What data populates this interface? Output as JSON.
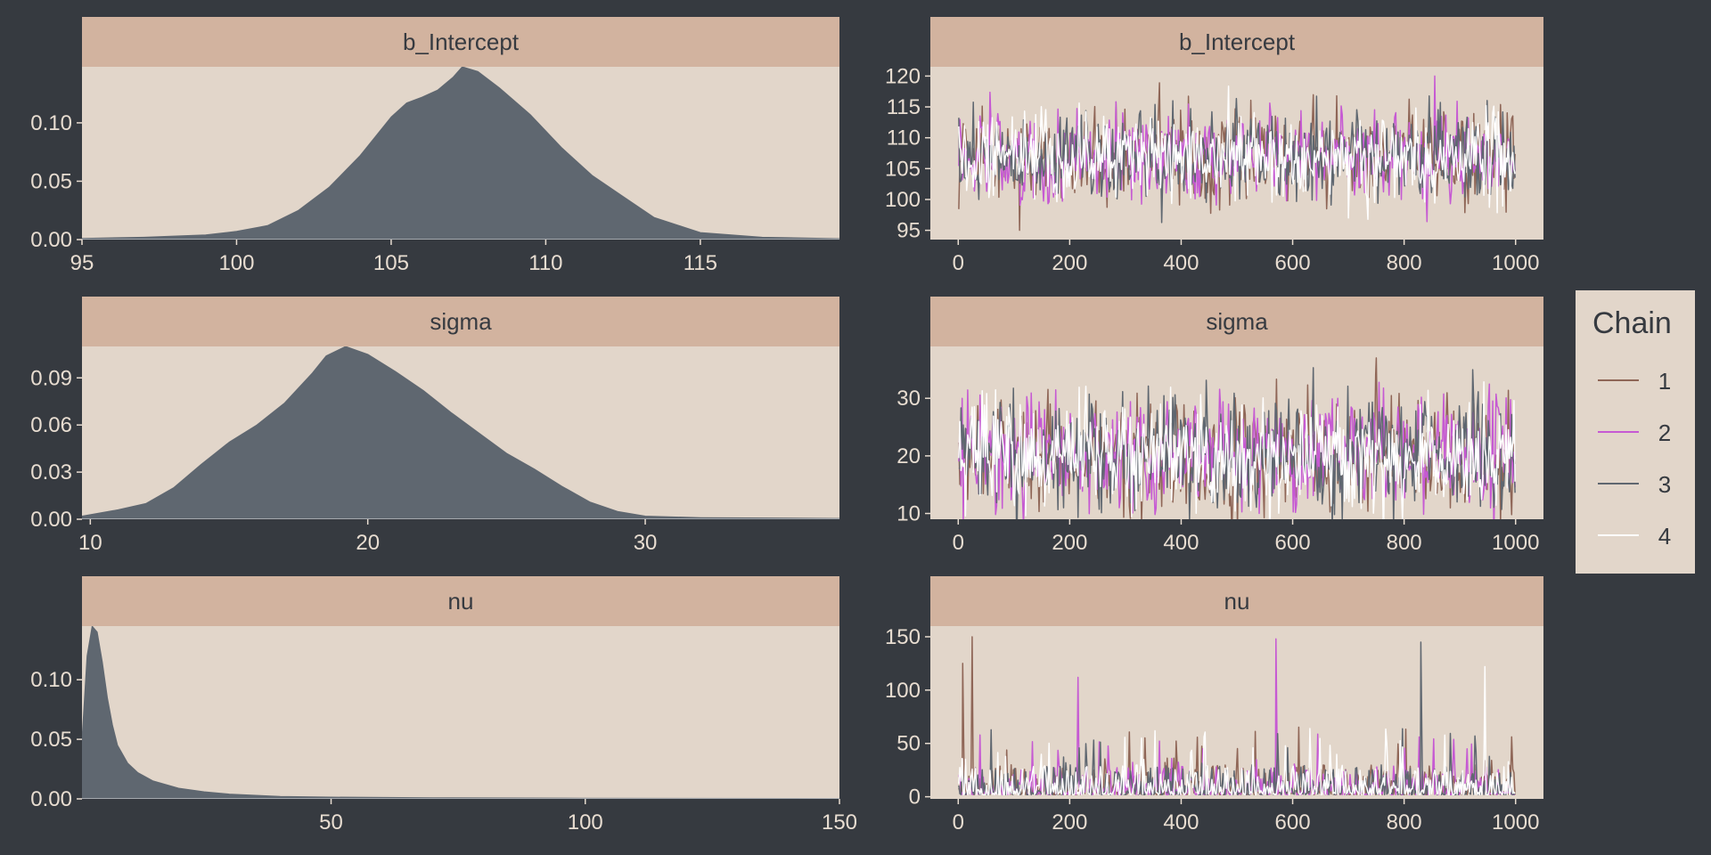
{
  "colors": {
    "background": "#363a40",
    "panel": "#e2d6ca",
    "strip": "#d2b39f",
    "density_fill": "#5f6770",
    "tick_text": "#e8ddd1",
    "strip_text": "#363a40"
  },
  "legend": {
    "title": "Chain",
    "items": [
      {
        "label": "1",
        "color": "#8f6657"
      },
      {
        "label": "2",
        "color": "#c65ad3"
      },
      {
        "label": "3",
        "color": "#5f6770"
      },
      {
        "label": "4",
        "color": "#ffffff"
      }
    ]
  },
  "chart_data": [
    {
      "type": "area",
      "title": "b_Intercept",
      "xlim": [
        95,
        119.5
      ],
      "ylim": [
        0,
        0.148
      ],
      "xticks": [
        95,
        100,
        105,
        110,
        115
      ],
      "yticks": [
        0,
        0.05,
        0.1
      ],
      "ytick_labels": [
        "0.00",
        "0.05",
        "0.10"
      ],
      "x": [
        95,
        97,
        99,
        100,
        101,
        102,
        103,
        104,
        105,
        105.5,
        106,
        106.5,
        107,
        107.3,
        107.8,
        108.5,
        109.5,
        110.5,
        111.5,
        112.5,
        113.5,
        115,
        117,
        119.5
      ],
      "y": [
        0.001,
        0.002,
        0.004,
        0.007,
        0.012,
        0.025,
        0.045,
        0.072,
        0.105,
        0.117,
        0.122,
        0.128,
        0.139,
        0.148,
        0.144,
        0.13,
        0.107,
        0.079,
        0.055,
        0.037,
        0.019,
        0.006,
        0.002,
        0.0008
      ]
    },
    {
      "type": "line",
      "title": "b_Intercept",
      "xlim": [
        -50,
        1050
      ],
      "ylim": [
        93.5,
        121.5
      ],
      "xticks": [
        0,
        200,
        400,
        600,
        800,
        1000
      ],
      "yticks": [
        95,
        100,
        105,
        110,
        115,
        120
      ],
      "iterations": 1000,
      "center": 107,
      "spread": 3.5,
      "extremes": [
        {
          "x": 110,
          "y": 95
        },
        {
          "x": 855,
          "y": 120
        },
        {
          "x": 385,
          "y": 116
        },
        {
          "x": 700,
          "y": 97
        }
      ],
      "series": [
        {
          "name": "1"
        },
        {
          "name": "2"
        },
        {
          "name": "3"
        },
        {
          "name": "4"
        }
      ]
    },
    {
      "type": "area",
      "title": "sigma",
      "xlim": [
        9.7,
        37
      ],
      "ylim": [
        0,
        0.11
      ],
      "xticks": [
        10,
        20,
        30
      ],
      "yticks": [
        0,
        0.03,
        0.06,
        0.09
      ],
      "ytick_labels": [
        "0.00",
        "0.03",
        "0.06",
        "0.09"
      ],
      "x": [
        9.7,
        11,
        12,
        13,
        14,
        15,
        16,
        17,
        18,
        18.5,
        19.2,
        20,
        21,
        22,
        23,
        24,
        25,
        26,
        27,
        28,
        29,
        30,
        32,
        37
      ],
      "y": [
        0.002,
        0.006,
        0.01,
        0.02,
        0.035,
        0.049,
        0.06,
        0.074,
        0.093,
        0.104,
        0.11,
        0.105,
        0.094,
        0.082,
        0.068,
        0.055,
        0.042,
        0.032,
        0.021,
        0.011,
        0.005,
        0.002,
        0.001,
        0.0005
      ]
    },
    {
      "type": "line",
      "title": "sigma",
      "xlim": [
        -50,
        1050
      ],
      "ylim": [
        9,
        39
      ],
      "xticks": [
        0,
        200,
        400,
        600,
        800,
        1000
      ],
      "yticks": [
        10,
        20,
        30
      ],
      "iterations": 1000,
      "center": 20,
      "spread": 4.8,
      "extremes": [
        {
          "x": 750,
          "y": 37
        },
        {
          "x": 540,
          "y": 10
        },
        {
          "x": 895,
          "y": 12
        }
      ],
      "series": [
        {
          "name": "1"
        },
        {
          "name": "2"
        },
        {
          "name": "3"
        },
        {
          "name": "4"
        }
      ]
    },
    {
      "type": "area",
      "title": "nu",
      "xlim": [
        1,
        150
      ],
      "ylim": [
        0,
        0.145
      ],
      "xticks": [
        50,
        100,
        150
      ],
      "yticks": [
        0,
        0.05,
        0.1
      ],
      "ytick_labels": [
        "0.00",
        "0.05",
        "0.10"
      ],
      "x": [
        1,
        2,
        3,
        4,
        5,
        6,
        7,
        8,
        10,
        12,
        15,
        20,
        25,
        30,
        40,
        50,
        70,
        100,
        150
      ],
      "y": [
        0.05,
        0.12,
        0.145,
        0.14,
        0.115,
        0.085,
        0.062,
        0.045,
        0.03,
        0.022,
        0.015,
        0.009,
        0.006,
        0.004,
        0.002,
        0.0015,
        0.001,
        0.0006,
        0.0003
      ]
    },
    {
      "type": "line",
      "title": "nu",
      "xlim": [
        -50,
        1050
      ],
      "ylim": [
        -2,
        160
      ],
      "xticks": [
        0,
        200,
        400,
        600,
        800,
        1000
      ],
      "yticks": [
        0,
        50,
        100,
        150
      ],
      "iterations": 1000,
      "center": 8,
      "spread": 0,
      "extremes": [
        {
          "x": 25,
          "y": 150
        },
        {
          "x": 570,
          "y": 148
        },
        {
          "x": 830,
          "y": 145
        },
        {
          "x": 945,
          "y": 122
        },
        {
          "x": 8,
          "y": 125
        },
        {
          "x": 215,
          "y": 112
        }
      ],
      "series": [
        {
          "name": "1"
        },
        {
          "name": "2"
        },
        {
          "name": "3"
        },
        {
          "name": "4"
        }
      ]
    }
  ]
}
